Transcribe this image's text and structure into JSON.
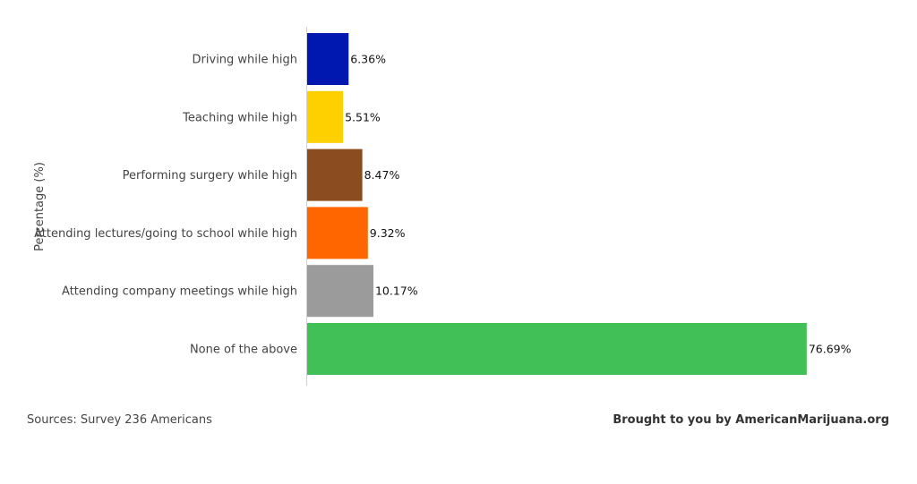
{
  "chart_data": {
    "type": "bar",
    "orientation": "horizontal",
    "ylabel": "Percentage (%)",
    "categories": [
      "Driving while high",
      "Teaching while high",
      "Performing surgery while high",
      "Attending lectures/going to school while high",
      "Attending company meetings while high",
      "None of the above"
    ],
    "values": [
      6.36,
      5.51,
      8.47,
      9.32,
      10.17,
      76.69
    ],
    "value_labels": [
      "6.36%",
      "5.51%",
      "8.47%",
      "9.32%",
      "10.17%",
      "76.69%"
    ],
    "colors": [
      "#0018b0",
      "#ffd000",
      "#8b4c20",
      "#ff6600",
      "#9b9b9b",
      "#41c057"
    ],
    "xlim": [
      0,
      77.4
    ],
    "grid": false,
    "legend": "none"
  },
  "footer": {
    "sources": "Sources: Survey 236 Americans",
    "credit": "Brought to you by AmericanMarijuana.org"
  }
}
